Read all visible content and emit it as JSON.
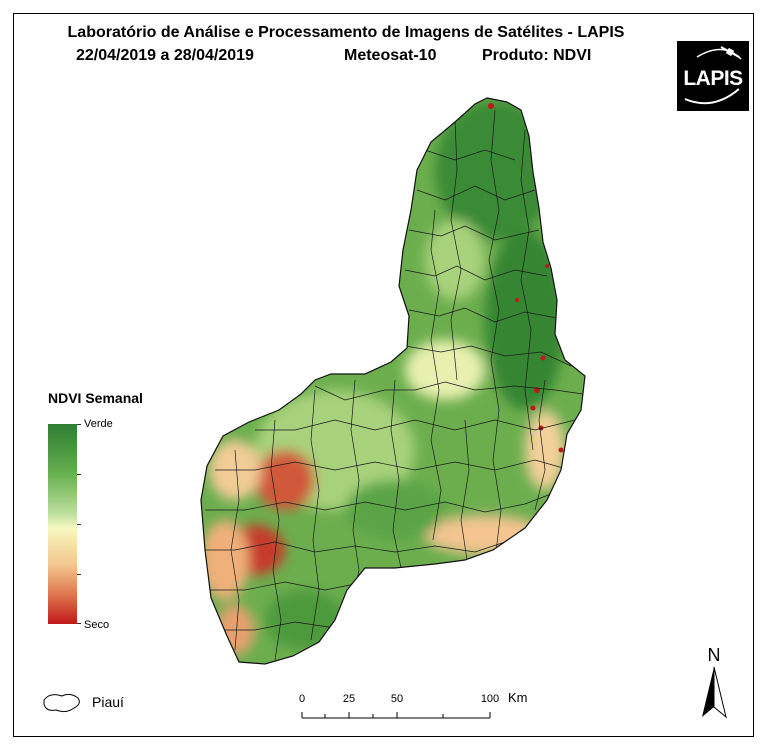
{
  "header": {
    "title": "Laboratório de Análise e Processamento de Imagens de Satélites - LAPIS",
    "date_range": "22/04/2019  a 28/04/2019",
    "satellite": "Meteosat-10",
    "product": "Produto: NDVI"
  },
  "logo": {
    "text": "LAPIS"
  },
  "legend": {
    "title": "NDVI Semanal",
    "high_label": "Verde",
    "low_label": "Seco",
    "colors": [
      "#2e7d32",
      "#66b04f",
      "#bfe0a0",
      "#f6f8c0",
      "#f4c890",
      "#e07850",
      "#c0181a"
    ]
  },
  "boundary_legend": {
    "label": "Piauí"
  },
  "scale": {
    "ticks": [
      "0",
      "25",
      "50",
      "100"
    ],
    "unit": "Km"
  },
  "north_arrow": {
    "label": "N"
  }
}
